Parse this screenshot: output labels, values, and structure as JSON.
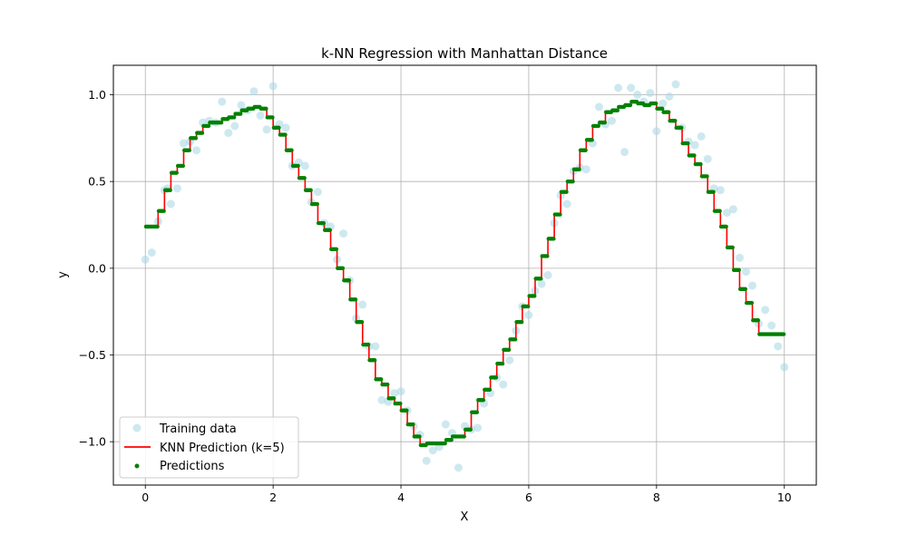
{
  "chart_data": {
    "type": "scatter",
    "title": "k-NN Regression with Manhattan Distance",
    "xlabel": "X",
    "ylabel": "y",
    "xlim": [
      -0.5,
      10.5
    ],
    "ylim": [
      -1.25,
      1.17
    ],
    "x_ticks": [
      0,
      2,
      4,
      6,
      8,
      10
    ],
    "x_tick_labels": [
      "0",
      "2",
      "4",
      "6",
      "8",
      "10"
    ],
    "y_ticks": [
      -1.0,
      -0.5,
      0.0,
      0.5,
      1.0
    ],
    "y_tick_labels": [
      "−1.0",
      "−0.5",
      "0.0",
      "0.5",
      "1.0"
    ],
    "grid": true,
    "legend_position": "lower-left",
    "colors": {
      "training": "#add8e6",
      "prediction_line": "#ff0000",
      "predictions": "#008000"
    },
    "series": [
      {
        "name": "Training data",
        "kind": "scatter",
        "x": [
          0.0,
          0.1,
          0.2,
          0.3,
          0.35,
          0.4,
          0.5,
          0.6,
          0.7,
          0.8,
          0.9,
          1.0,
          1.1,
          1.2,
          1.3,
          1.4,
          1.5,
          1.6,
          1.7,
          1.8,
          1.9,
          2.0,
          2.1,
          2.2,
          2.3,
          2.4,
          2.5,
          2.6,
          2.7,
          2.8,
          2.9,
          3.0,
          3.1,
          3.2,
          3.3,
          3.4,
          3.5,
          3.6,
          3.7,
          3.8,
          3.9,
          4.0,
          4.1,
          4.2,
          4.3,
          4.4,
          4.5,
          4.6,
          4.7,
          4.8,
          4.9,
          5.0,
          5.1,
          5.2,
          5.3,
          5.4,
          5.5,
          5.6,
          5.7,
          5.8,
          5.9,
          6.0,
          6.1,
          6.2,
          6.3,
          6.4,
          6.5,
          6.6,
          6.7,
          6.8,
          6.9,
          7.0,
          7.1,
          7.2,
          7.3,
          7.4,
          7.5,
          7.6,
          7.7,
          7.8,
          7.9,
          8.0,
          8.1,
          8.2,
          8.3,
          8.4,
          8.5,
          8.6,
          8.7,
          8.8,
          8.9,
          9.0,
          9.1,
          9.2,
          9.3,
          9.4,
          9.5,
          9.6,
          9.7,
          9.8,
          9.9,
          10.0
        ],
        "y": [
          0.05,
          0.09,
          0.27,
          0.45,
          0.46,
          0.37,
          0.46,
          0.72,
          0.73,
          0.68,
          0.84,
          0.85,
          0.84,
          0.96,
          0.78,
          0.82,
          0.94,
          0.91,
          1.02,
          0.88,
          0.8,
          1.05,
          0.83,
          0.81,
          0.59,
          0.61,
          0.59,
          0.38,
          0.44,
          0.26,
          0.24,
          0.05,
          0.2,
          -0.07,
          -0.29,
          -0.21,
          -0.45,
          -0.45,
          -0.76,
          -0.77,
          -0.72,
          -0.71,
          -0.82,
          -0.91,
          -0.96,
          -1.11,
          -1.05,
          -1.03,
          -0.9,
          -0.95,
          -1.15,
          -0.91,
          -0.93,
          -0.92,
          -0.78,
          -0.72,
          -0.63,
          -0.67,
          -0.53,
          -0.36,
          -0.22,
          -0.27,
          -0.13,
          -0.09,
          -0.04,
          0.26,
          0.42,
          0.37,
          0.56,
          0.58,
          0.57,
          0.72,
          0.93,
          0.83,
          0.85,
          1.04,
          0.67,
          1.04,
          1.0,
          0.96,
          1.01,
          0.79,
          0.95,
          0.99,
          1.06,
          0.81,
          0.73,
          0.71,
          0.76,
          0.63,
          0.46,
          0.45,
          0.32,
          0.34,
          0.06,
          -0.02,
          -0.1,
          -0.32,
          -0.24,
          -0.33,
          -0.45,
          -0.57
        ]
      },
      {
        "name": "KNN Prediction (k=5)",
        "kind": "line",
        "x_start": 0.0,
        "x_step": 0.1,
        "step_values": [
          0.24,
          0.24,
          0.33,
          0.45,
          0.55,
          0.59,
          0.68,
          0.75,
          0.78,
          0.82,
          0.84,
          0.84,
          0.86,
          0.87,
          0.89,
          0.91,
          0.92,
          0.93,
          0.92,
          0.87,
          0.81,
          0.77,
          0.68,
          0.59,
          0.52,
          0.45,
          0.37,
          0.26,
          0.22,
          0.11,
          0.0,
          -0.07,
          -0.18,
          -0.31,
          -0.44,
          -0.53,
          -0.64,
          -0.67,
          -0.75,
          -0.78,
          -0.82,
          -0.9,
          -0.97,
          -1.02,
          -1.01,
          -1.01,
          -1.01,
          -0.99,
          -0.97,
          -0.97,
          -0.93,
          -0.83,
          -0.76,
          -0.7,
          -0.63,
          -0.55,
          -0.47,
          -0.41,
          -0.31,
          -0.22,
          -0.16,
          -0.06,
          0.07,
          0.17,
          0.31,
          0.44,
          0.5,
          0.57,
          0.68,
          0.74,
          0.82,
          0.84,
          0.9,
          0.91,
          0.93,
          0.94,
          0.96,
          0.95,
          0.94,
          0.95,
          0.92,
          0.9,
          0.85,
          0.81,
          0.72,
          0.65,
          0.6,
          0.53,
          0.44,
          0.33,
          0.24,
          0.12,
          -0.01,
          -0.12,
          -0.2,
          -0.3,
          -0.38,
          -0.38,
          -0.38,
          -0.38
        ],
        "x_end": 10.0
      },
      {
        "name": "Predictions",
        "kind": "scatter",
        "note_points_per_step": 5
      }
    ]
  }
}
